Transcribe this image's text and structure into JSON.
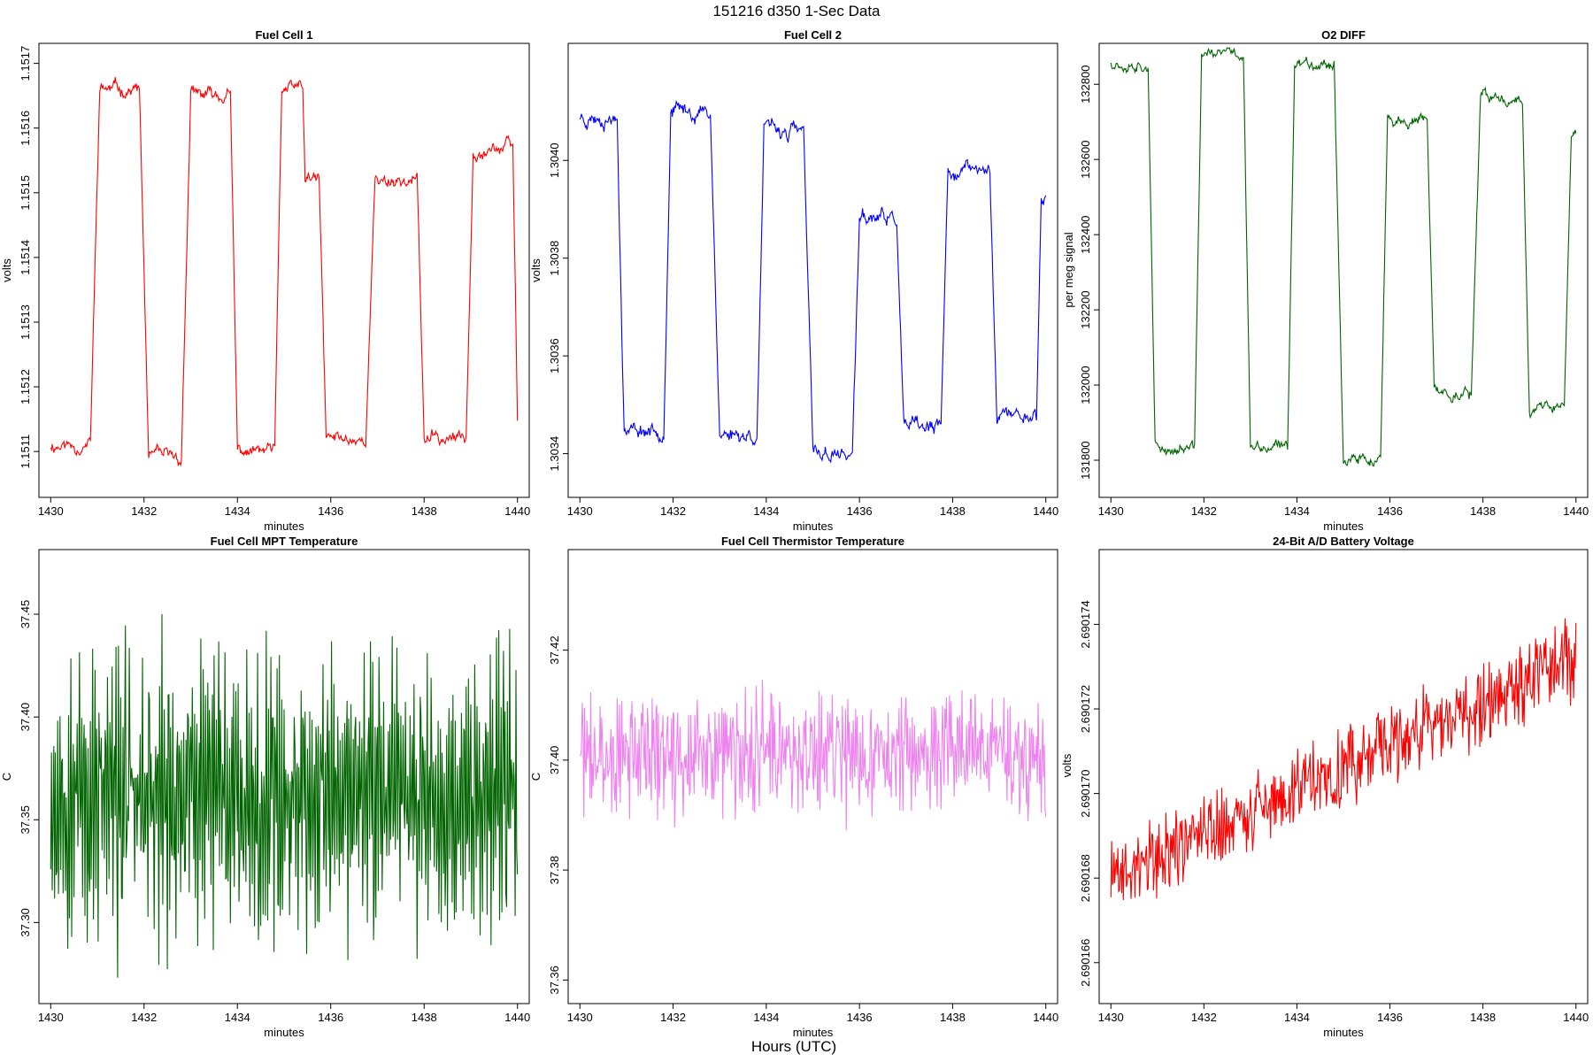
{
  "figure": {
    "title": "151216   d350   1-Sec Data",
    "footer": "Hours (UTC)"
  },
  "chart_data": [
    {
      "type": "line",
      "title": "Fuel Cell 1",
      "xlabel": "minutes",
      "ylabel": "volts",
      "color": "#ff0000",
      "xlim": [
        1429.9,
        1440.1
      ],
      "ylim": [
        1.15104,
        1.15172
      ],
      "xticks": [
        "1430",
        "1432",
        "1434",
        "1436",
        "1438",
        "1440"
      ],
      "yticks": [
        "1.1511",
        "1.1512",
        "1.1513",
        "1.1514",
        "1.1515",
        "1.1516",
        "1.1517"
      ],
      "segments": [
        [
          1430.0,
          1430.85,
          1.15111
        ],
        [
          1431.05,
          1431.9,
          1.15166
        ],
        [
          1432.1,
          1432.8,
          1.15109
        ],
        [
          1433.0,
          1433.85,
          1.15165
        ],
        [
          1434.0,
          1434.8,
          1.1511
        ],
        [
          1434.95,
          1435.4,
          1.15166
        ],
        [
          1435.45,
          1435.75,
          1.15152
        ],
        [
          1435.9,
          1436.75,
          1.15112
        ],
        [
          1436.95,
          1437.85,
          1.15152
        ],
        [
          1438.0,
          1438.9,
          1.15112
        ],
        [
          1439.05,
          1439.9,
          1.15157
        ],
        [
          1440.0,
          1440.0,
          1.15115
        ]
      ],
      "noise": 1.2e-05,
      "seed": 11
    },
    {
      "type": "line",
      "title": "Fuel Cell 2",
      "xlabel": "minutes",
      "ylabel": "volts",
      "color": "#0000ff",
      "xlim": [
        1429.9,
        1440.1
      ],
      "ylim": [
        1.303325,
        1.304225
      ],
      "xticks": [
        "1430",
        "1432",
        "1434",
        "1436",
        "1438",
        "1440"
      ],
      "yticks": [
        "1.3034",
        "1.3036",
        "1.3038",
        "1.3040"
      ],
      "segments": [
        [
          1430.0,
          1430.8,
          1.30409
        ],
        [
          1430.95,
          1431.8,
          1.30345
        ],
        [
          1431.95,
          1432.8,
          1.3041
        ],
        [
          1433.0,
          1433.8,
          1.30344
        ],
        [
          1433.95,
          1434.8,
          1.30406
        ],
        [
          1435.0,
          1435.85,
          1.3034
        ],
        [
          1436.0,
          1436.8,
          1.30388
        ],
        [
          1436.95,
          1437.75,
          1.30345
        ],
        [
          1437.9,
          1438.8,
          1.30398
        ],
        [
          1438.95,
          1439.8,
          1.30348
        ],
        [
          1439.9,
          1440.0,
          1.30392
        ]
      ],
      "noise": 1.8e-05,
      "seed": 23
    },
    {
      "type": "line",
      "title": "O2 DIFF",
      "xlabel": "minutes",
      "ylabel": "per meg signal",
      "color": "#006400",
      "xlim": [
        1429.9,
        1440.1
      ],
      "ylim": [
        131720,
        132890
      ],
      "xticks": [
        "1430",
        "1432",
        "1434",
        "1436",
        "1438",
        "1440"
      ],
      "yticks": [
        "131800",
        "132000",
        "132200",
        "132400",
        "132600",
        "132800"
      ],
      "segments": [
        [
          1430.0,
          1430.8,
          132860
        ],
        [
          1430.95,
          1431.8,
          131830
        ],
        [
          1431.95,
          1432.85,
          132880
        ],
        [
          1433.0,
          1433.8,
          131830
        ],
        [
          1433.95,
          1434.8,
          132860
        ],
        [
          1435.0,
          1435.8,
          131800
        ],
        [
          1435.95,
          1436.8,
          132700
        ],
        [
          1436.95,
          1437.75,
          131980
        ],
        [
          1437.95,
          1438.85,
          132760
        ],
        [
          1439.0,
          1439.75,
          131940
        ],
        [
          1439.9,
          1440.0,
          132670
        ]
      ],
      "noise": 18,
      "seed": 37
    },
    {
      "type": "line",
      "title": "Fuel Cell MPT Temperature",
      "xlabel": "minutes",
      "ylabel": "C",
      "color": "#006400",
      "xlim": [
        1429.9,
        1440.1
      ],
      "ylim": [
        37.264,
        37.478
      ],
      "xticks": [
        "1430",
        "1432",
        "1434",
        "1436",
        "1438",
        "1440"
      ],
      "yticks": [
        "37.30",
        "37.35",
        "37.40",
        "37.45"
      ],
      "mean": 37.362,
      "amplitude": 0.055,
      "oscillation": 0.045,
      "seed": 53
    },
    {
      "type": "line",
      "title": "Fuel Cell Thermistor Temperature",
      "xlabel": "minutes",
      "ylabel": "C",
      "color": "#ee82ee",
      "xlim": [
        1429.9,
        1440.1
      ],
      "ylim": [
        37.357,
        37.437
      ],
      "xticks": [
        "1430",
        "1432",
        "1434",
        "1436",
        "1438",
        "1440"
      ],
      "yticks": [
        "37.36",
        "37.38",
        "37.40",
        "37.42"
      ],
      "mean": 37.401,
      "amplitude": 0.012,
      "oscillation": 0.004,
      "seed": 71
    },
    {
      "type": "line",
      "title": "24-Bit A/D Battery Voltage",
      "xlabel": "minutes",
      "ylabel": "volts",
      "color": "#ff0000",
      "xlim": [
        1429.9,
        1440.1
      ],
      "ylim": [
        2.6901652,
        2.6901756
      ],
      "xticks": [
        "1430",
        "1432",
        "1434",
        "1436",
        "1438",
        "1440"
      ],
      "yticks": [
        "2.690166",
        "2.690168",
        "2.690170",
        "2.690172",
        "2.690174"
      ],
      "trend_start": 2.690168,
      "trend_end": 2.6901732,
      "amplitude": 1.2e-06,
      "seed": 89
    }
  ]
}
